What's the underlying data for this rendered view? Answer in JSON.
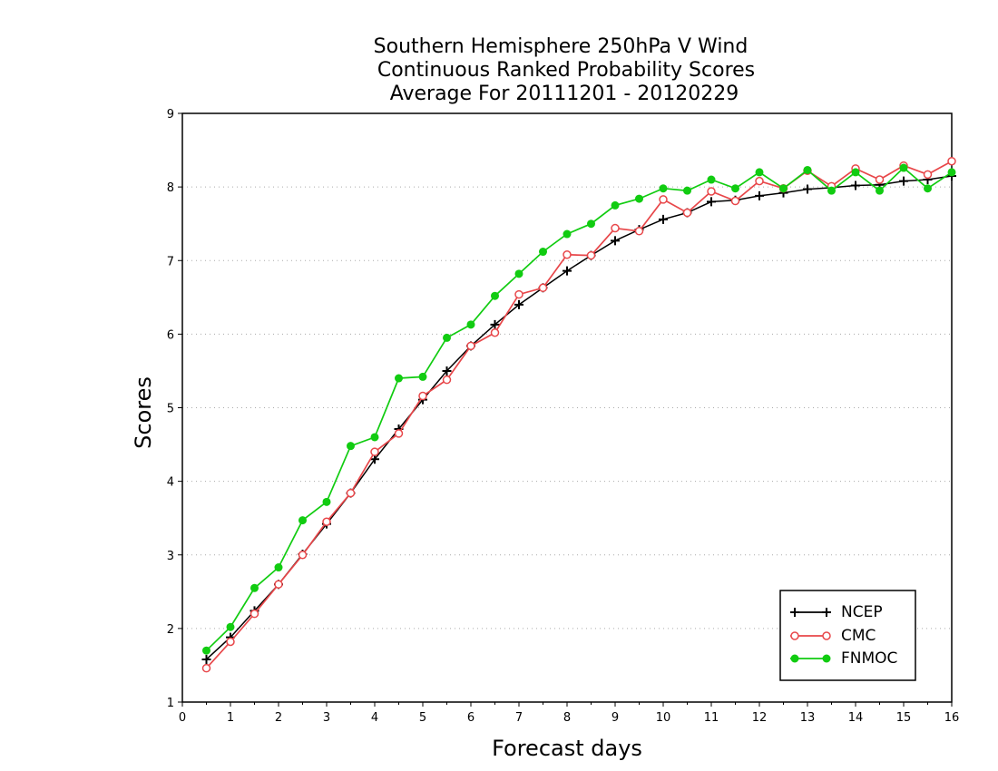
{
  "chart_data": {
    "type": "line",
    "title": [
      "Southern Hemisphere 250hPa V Wind",
      "Continuous Ranked Probability Scores",
      "Average For 20111201 - 20120229"
    ],
    "xlabel": "Forecast days",
    "ylabel": "Scores",
    "xlim": [
      0,
      16
    ],
    "ylim": [
      1,
      9
    ],
    "xticks": [
      "0",
      "1",
      "2",
      "3",
      "4",
      "5",
      "6",
      "7",
      "8",
      "9",
      "10",
      "11",
      "12",
      "13",
      "14",
      "15",
      "16"
    ],
    "yticks": [
      "1",
      "2",
      "3",
      "4",
      "5",
      "6",
      "7",
      "8",
      "9"
    ],
    "grid": "horizontal dotted",
    "legend_position": "bottom-right",
    "x": [
      0.5,
      1,
      1.5,
      2,
      2.5,
      3,
      3.5,
      4,
      4.5,
      5,
      5.5,
      6,
      6.5,
      7,
      7.5,
      8,
      8.5,
      9,
      9.5,
      10,
      10.5,
      11,
      11.5,
      12,
      12.5,
      13,
      13.5,
      14,
      14.5,
      15,
      15.5,
      16
    ],
    "series": [
      {
        "name": "NCEP",
        "color": "#000000",
        "marker": "plus",
        "values": [
          1.58,
          1.88,
          2.24,
          2.6,
          3.01,
          3.42,
          3.84,
          4.3,
          4.71,
          5.11,
          5.5,
          5.84,
          6.13,
          6.4,
          6.63,
          6.86,
          7.07,
          7.27,
          7.42,
          7.56,
          7.65,
          7.8,
          7.82,
          7.88,
          7.92,
          7.97,
          7.99,
          8.02,
          8.03,
          8.08,
          8.1,
          8.15
        ]
      },
      {
        "name": "CMC",
        "color": "#e8474a",
        "marker": "open-circle",
        "values": [
          1.46,
          1.82,
          2.2,
          2.6,
          3.0,
          3.45,
          3.84,
          4.4,
          4.65,
          5.16,
          5.38,
          5.84,
          6.02,
          6.54,
          6.63,
          7.08,
          7.07,
          7.44,
          7.4,
          7.83,
          7.65,
          7.94,
          7.81,
          8.08,
          7.98,
          8.22,
          8.01,
          8.25,
          8.1,
          8.29,
          8.17,
          8.35
        ]
      },
      {
        "name": "FNMOC",
        "color": "#11cc11",
        "marker": "filled-circle",
        "values": [
          1.7,
          2.02,
          2.55,
          2.83,
          3.47,
          3.72,
          4.48,
          4.6,
          5.4,
          5.42,
          5.95,
          6.13,
          6.52,
          6.82,
          7.12,
          7.36,
          7.5,
          7.75,
          7.84,
          7.98,
          7.95,
          8.1,
          7.98,
          8.2,
          7.98,
          8.23,
          7.95,
          8.2,
          7.95,
          8.26,
          7.98,
          8.2
        ]
      }
    ]
  }
}
